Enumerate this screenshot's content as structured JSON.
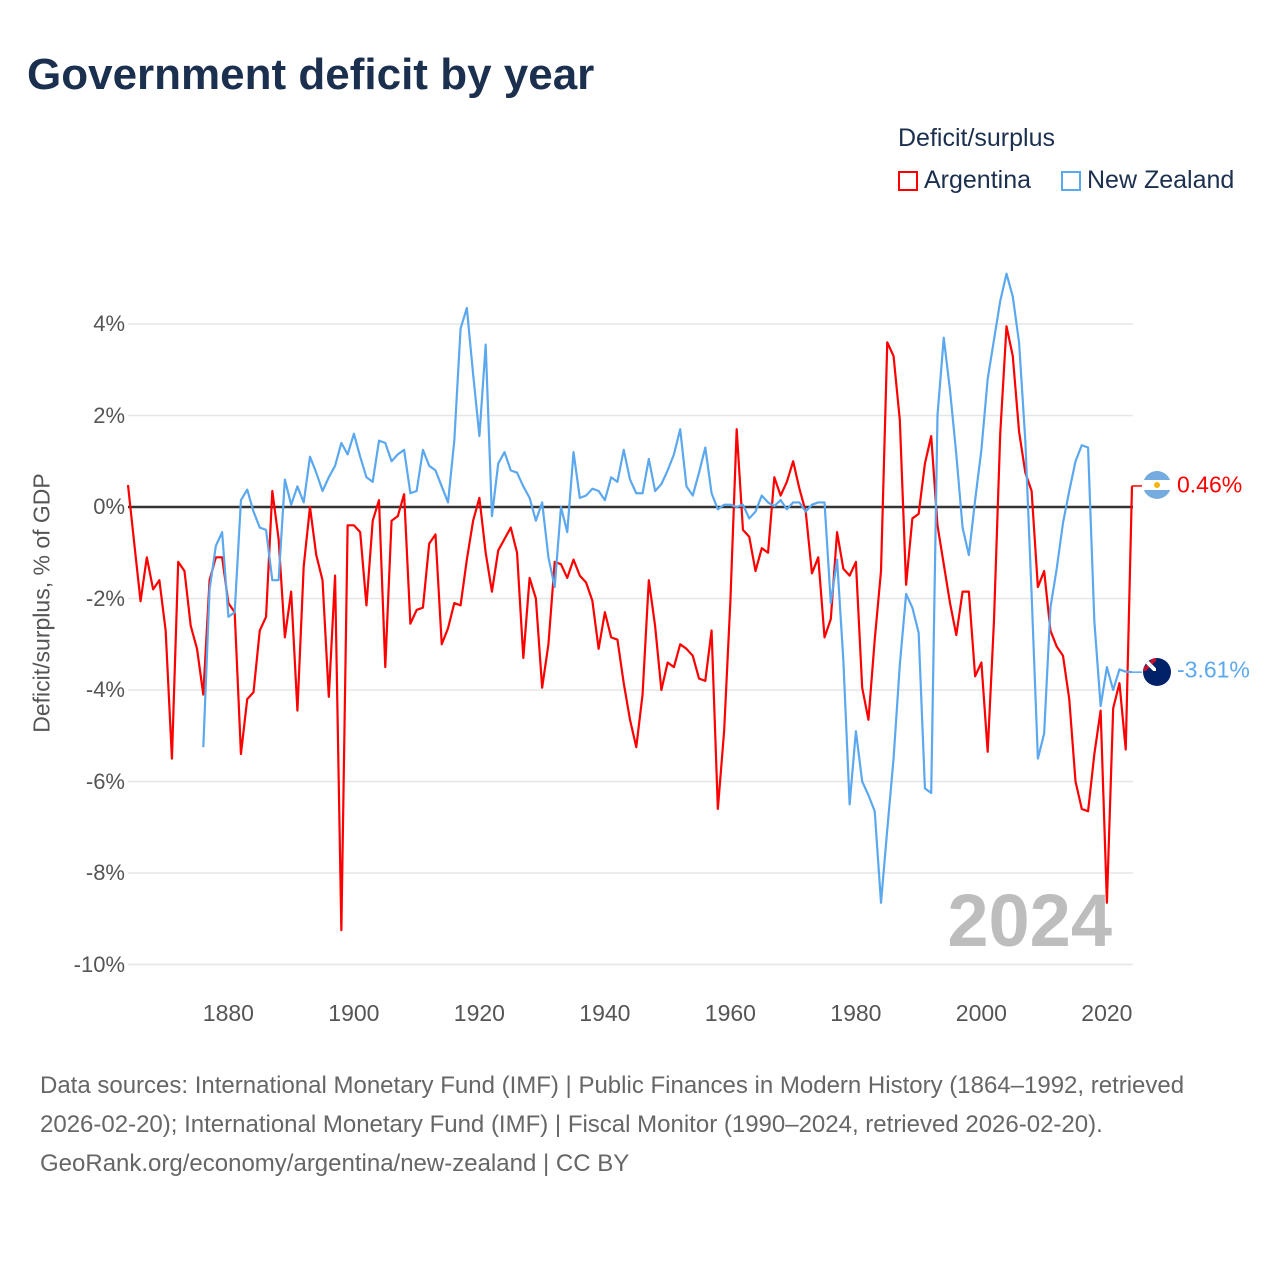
{
  "title": "Government deficit by year",
  "legend": {
    "title": "Deficit/surplus",
    "items": [
      "Argentina",
      "New Zealand"
    ]
  },
  "end_labels": {
    "argentina": "0.46%",
    "new_zealand": "-3.61%"
  },
  "year_watermark": "2024",
  "sources": "Data sources: International Monetary Fund (IMF) | Public Finances in Modern History (1864–1992, retrieved 2026-02-20); International Monetary Fund (IMF) | Fiscal Monitor (1990–2024, retrieved 2026-02-20).",
  "credit": "GeoRank.org/economy/argentina/new-zealand | CC BY",
  "colors": {
    "argentina": "#ff0000",
    "new_zealand": "#5ba8ee"
  },
  "chart_data": {
    "type": "line",
    "title": "Government deficit by year",
    "xlabel": "",
    "ylabel": "Deficit/surplus, % of GDP",
    "xlim": [
      1864,
      2024
    ],
    "ylim": [
      -10,
      5
    ],
    "yticks": [
      4,
      2,
      0,
      -2,
      -4,
      -6,
      -8,
      -10
    ],
    "ytick_labels": [
      "4%",
      "2%",
      "0%",
      "-2%",
      "-4%",
      "-6%",
      "-8%",
      "-10%"
    ],
    "xticks": [
      1880,
      1900,
      1920,
      1940,
      1960,
      1980,
      2000,
      2020
    ],
    "xtick_labels": [
      "1880",
      "1900",
      "1920",
      "1940",
      "1960",
      "1980",
      "2000",
      "2020"
    ],
    "legend_position": "top-right",
    "series": [
      {
        "name": "Argentina",
        "start_year": 1864,
        "values": [
          0.48,
          -0.8,
          -2.06,
          -1.1,
          -1.8,
          -1.6,
          -2.7,
          -5.5,
          -1.2,
          -1.4,
          -2.6,
          -3.1,
          -4.1,
          -1.6,
          -1.1,
          -1.1,
          -2.1,
          -2.3,
          -5.4,
          -4.2,
          -4.05,
          -2.7,
          -2.4,
          0.35,
          -0.7,
          -2.85,
          -1.85,
          -4.45,
          -1.3,
          0,
          -1.05,
          -1.6,
          -4.15,
          -1.5,
          -9.25,
          -0.4,
          -0.4,
          -0.55,
          -2.15,
          -0.3,
          0.15,
          -3.5,
          -0.3,
          -0.2,
          0.28,
          -2.55,
          -2.25,
          -2.2,
          -0.8,
          -0.6,
          -3.0,
          -2.65,
          -2.1,
          -2.15,
          -1.15,
          -0.3,
          0.2,
          -1.0,
          -1.85,
          -0.95,
          -0.7,
          -0.45,
          -1.0,
          -3.3,
          -1.55,
          -2.0,
          -3.95,
          -3.0,
          -1.2,
          -1.25,
          -1.55,
          -1.15,
          -1.5,
          -1.65,
          -2.05,
          -3.1,
          -2.3,
          -2.85,
          -2.9,
          -3.85,
          -4.65,
          -5.25,
          -4.1,
          -1.6,
          -2.6,
          -4.0,
          -3.4,
          -3.5,
          -3.0,
          -3.1,
          -3.25,
          -3.75,
          -3.8,
          -2.7,
          -6.6,
          -4.9,
          -2.05,
          1.7,
          -0.5,
          -0.65,
          -1.4,
          -0.9,
          -1.0,
          0.65,
          0.25,
          0.55,
          1.0,
          0.4,
          -0.1,
          -1.45,
          -1.1,
          -2.85,
          -2.45,
          -0.55,
          -1.35,
          -1.5,
          -1.2,
          -3.95,
          -4.65,
          -2.9,
          -1.4,
          3.6,
          3.3,
          1.9,
          -1.7,
          -0.25,
          -0.15,
          0.95,
          1.55,
          -0.4,
          -1.25,
          -2.1,
          -2.8,
          -1.85,
          -1.85,
          -3.7,
          -3.4,
          -5.35,
          -2.5,
          1.6,
          3.95,
          3.3,
          1.65,
          0.75,
          0.35,
          -1.75,
          -1.4,
          -2.7,
          -3.05,
          -3.25,
          -4.2,
          -6.0,
          -6.6,
          -6.65,
          -5.4,
          -4.45,
          -8.65,
          -4.4,
          -3.85,
          -5.3,
          0.46
        ]
      },
      {
        "name": "New Zealand",
        "start_year": 1876,
        "values": [
          -5.25,
          -1.8,
          -0.85,
          -0.55,
          -2.4,
          -2.3,
          0.15,
          0.38,
          -0.1,
          -0.45,
          -0.5,
          -1.6,
          -1.6,
          0.6,
          0.05,
          0.45,
          0.1,
          1.1,
          0.75,
          0.35,
          0.65,
          0.9,
          1.4,
          1.15,
          1.6,
          1.1,
          0.65,
          0.55,
          1.45,
          1.4,
          1.0,
          1.15,
          1.25,
          0.3,
          0.35,
          1.25,
          0.9,
          0.8,
          0.45,
          0.1,
          1.45,
          3.9,
          4.35,
          2.9,
          1.55,
          3.55,
          -0.2,
          0.95,
          1.2,
          0.8,
          0.75,
          0.45,
          0.2,
          -0.3,
          0.1,
          -1.1,
          -1.75,
          0,
          -0.55,
          1.2,
          0.2,
          0.25,
          0.4,
          0.35,
          0.15,
          0.65,
          0.55,
          1.25,
          0.6,
          0.3,
          0.3,
          1.05,
          0.35,
          0.5,
          0.8,
          1.15,
          1.7,
          0.45,
          0.25,
          0.75,
          1.3,
          0.3,
          -0.05,
          0.05,
          0.05,
          0,
          0.05,
          -0.25,
          -0.1,
          0.25,
          0.1,
          0.02,
          0.15,
          -0.05,
          0.1,
          0.1,
          -0.1,
          0.05,
          0.1,
          0.1,
          -2.1,
          -1.15,
          -3.35,
          -6.5,
          -4.9,
          -6.0,
          -6.3,
          -6.65,
          -8.65,
          -7.05,
          -5.5,
          -3.45,
          -1.9,
          -2.2,
          -2.75,
          -6.15,
          -6.25,
          2.0,
          3.7,
          2.55,
          1.15,
          -0.45,
          -1.05,
          0.15,
          1.25,
          2.8,
          3.65,
          4.5,
          5.1,
          4.6,
          3.6,
          1.45,
          -1.9,
          -5.5,
          -4.95,
          -2.2,
          -1.35,
          -0.35,
          0.35,
          1.0,
          1.35,
          1.3,
          -2.5,
          -4.35,
          -3.5,
          -4.0,
          -3.55,
          -3.6,
          -3.61
        ]
      }
    ]
  }
}
